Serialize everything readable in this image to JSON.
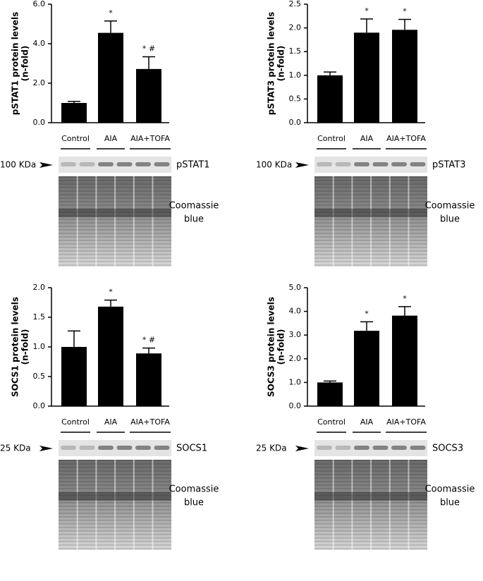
{
  "chart_data": [
    {
      "type": "bar",
      "ylabel_lines": [
        "pSTAT1 protein levels",
        "(n-fold)"
      ],
      "categories": [
        "Control",
        "AIA",
        "AIA+TOFA"
      ],
      "values": [
        1.0,
        4.55,
        2.72
      ],
      "errors": [
        0.08,
        0.6,
        0.62
      ],
      "annotations": [
        null,
        "*",
        "* #"
      ],
      "color": "#000000",
      "ylim": [
        0,
        6
      ],
      "yticks": [
        {
          "value": 0,
          "label": "0.0"
        },
        {
          "value": 2,
          "label": "2.0"
        },
        {
          "value": 4,
          "label": "4.0"
        },
        {
          "value": 6,
          "label": "6.0"
        }
      ],
      "blot": {
        "marker": "100 KDa",
        "protein": "pSTAT1",
        "stain": [
          "Coomassie",
          "blue"
        ]
      }
    },
    {
      "type": "bar",
      "ylabel_lines": [
        "pSTAT3 protein levels",
        "(n-fold)"
      ],
      "categories": [
        "Control",
        "AIA",
        "AIA+TOFA"
      ],
      "values": [
        1.0,
        1.9,
        1.96
      ],
      "errors": [
        0.07,
        0.29,
        0.22
      ],
      "annotations": [
        null,
        "*",
        "*"
      ],
      "color": "#000000",
      "ylim": [
        0,
        2.5
      ],
      "yticks": [
        {
          "value": 0,
          "label": "0.0"
        },
        0.5,
        {
          "value": 1,
          "label": "1.0"
        },
        1.5,
        {
          "value": 2,
          "label": "2.0"
        },
        2.5
      ],
      "blot": {
        "marker": "100 KDa",
        "protein": "pSTAT3",
        "stain": [
          "Coomassie",
          "blue"
        ]
      }
    },
    {
      "type": "bar",
      "ylabel_lines": [
        "SOCS1 protein levels",
        "(n-fold)"
      ],
      "categories": [
        "Control",
        "AIA",
        "AIA+TOFA"
      ],
      "values": [
        1.0,
        1.68,
        0.89
      ],
      "errors": [
        0.27,
        0.11,
        0.09
      ],
      "annotations": [
        null,
        "*",
        "* #"
      ],
      "color": "#000000",
      "ylim": [
        0,
        2
      ],
      "yticks": [
        {
          "value": 0,
          "label": "0.0"
        },
        0.5,
        {
          "value": 1,
          "label": "1.0"
        },
        1.5,
        {
          "value": 2,
          "label": "2.0"
        }
      ],
      "blot": {
        "marker": "25 KDa",
        "protein": "SOCS1",
        "stain": [
          "Coomassie",
          "blue"
        ]
      }
    },
    {
      "type": "bar",
      "ylabel_lines": [
        "SOCS3 protein levels",
        "(n-fold)"
      ],
      "categories": [
        "Control",
        "AIA",
        "AIA+TOFA"
      ],
      "values": [
        1.0,
        3.18,
        3.82
      ],
      "errors": [
        0.06,
        0.38,
        0.38
      ],
      "annotations": [
        null,
        "*",
        "*"
      ],
      "color": "#000000",
      "ylim": [
        0,
        5
      ],
      "yticks": [
        {
          "value": 0,
          "label": "0.0"
        },
        {
          "value": 1,
          "label": "1.0"
        },
        {
          "value": 2,
          "label": "2.0"
        },
        {
          "value": 3,
          "label": "3.0"
        },
        {
          "value": 4,
          "label": "4.0"
        },
        {
          "value": 5,
          "label": "5.0"
        }
      ],
      "blot": {
        "marker": "25 KDa",
        "protein": "SOCS3",
        "stain": [
          "Coomassie",
          "blue"
        ]
      }
    }
  ]
}
